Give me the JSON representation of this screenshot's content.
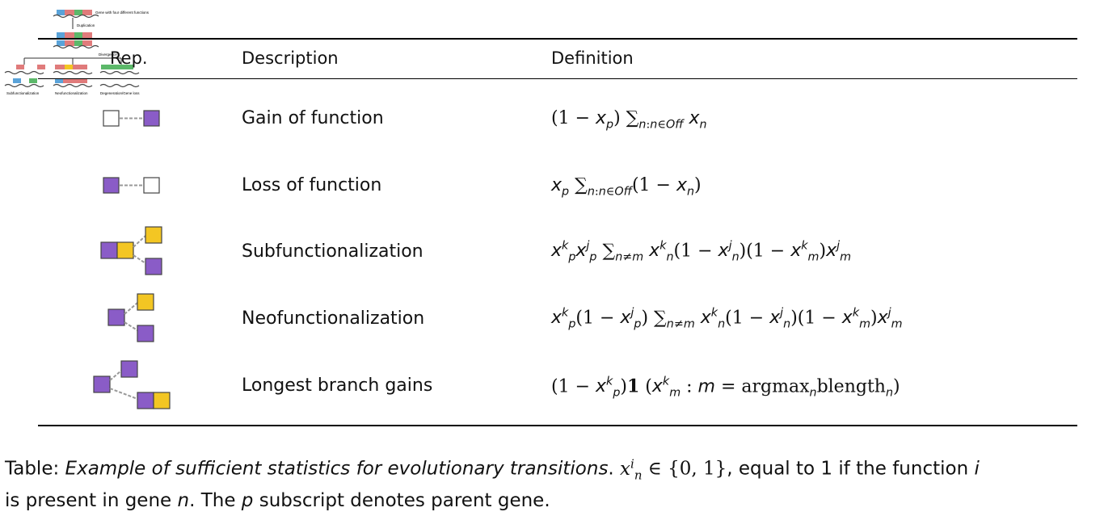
{
  "header": {
    "rep": "Rep.",
    "description": "Description",
    "definition": "Definition"
  },
  "rows": [
    {
      "description": "Gain of function",
      "icon": "gain-of-function-icon"
    },
    {
      "description": "Loss of function",
      "icon": "loss-of-function-icon"
    },
    {
      "description": "Subfunctionalization",
      "icon": "subfunctionalization-icon"
    },
    {
      "description": "Neofunctionalization",
      "icon": "neofunctionalization-icon"
    },
    {
      "description": "Longest branch gains",
      "icon": "longest-branch-gains-icon"
    }
  ],
  "caption": {
    "prefix": "Table: ",
    "title": "Example of sufficient statistics for evolutionary transitions",
    "rest": "equal to 1 if the function",
    "rest2": "is present in gene",
    "rest3": "The",
    "rest4": "subscript denotes parent gene."
  },
  "thumbnail": {
    "top_label": "Gene with four different functions",
    "step1": "Duplication",
    "step2": "Divergence",
    "out1": "Subfunctionalization",
    "out2": "Neofunctionalization",
    "out3": "Degeneration/Gene loss"
  },
  "colors": {
    "purple": "#8a5cc7",
    "yellow": "#f3c623",
    "edge": "#999999"
  }
}
